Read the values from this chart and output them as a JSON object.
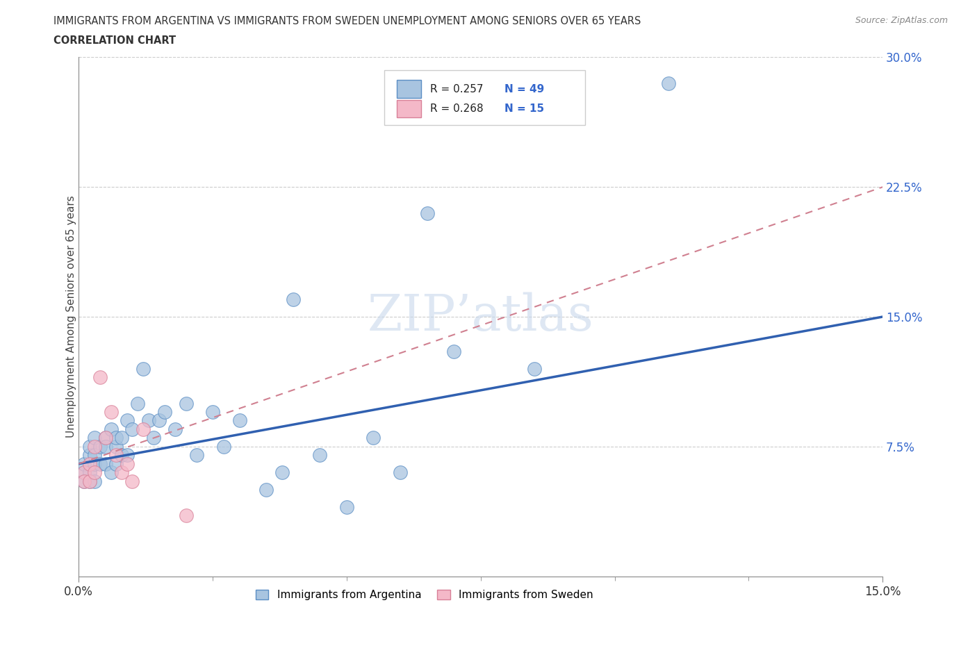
{
  "title_line1": "IMMIGRANTS FROM ARGENTINA VS IMMIGRANTS FROM SWEDEN UNEMPLOYMENT AMONG SENIORS OVER 65 YEARS",
  "title_line2": "CORRELATION CHART",
  "source_text": "Source: ZipAtlas.com",
  "ylabel": "Unemployment Among Seniors over 65 years",
  "xlim": [
    0.0,
    0.15
  ],
  "ylim": [
    0.0,
    0.3
  ],
  "xtick_positions": [
    0.0,
    0.15
  ],
  "xtick_labels": [
    "0.0%",
    "15.0%"
  ],
  "ytick_positions": [
    0.075,
    0.15,
    0.225,
    0.3
  ],
  "ytick_labels": [
    "7.5%",
    "15.0%",
    "22.5%",
    "30.0%"
  ],
  "legend_r1": "R = 0.257",
  "legend_n1": "N = 49",
  "legend_r2": "R = 0.268",
  "legend_n2": "N = 15",
  "color_argentina_fill": "#a8c4e0",
  "color_argentina_edge": "#5b8ec4",
  "color_sweden_fill": "#f4b8c8",
  "color_sweden_edge": "#d88098",
  "color_line_argentina": "#3060b0",
  "color_line_sweden": "#d08090",
  "watermark_color": "#c8d8ec",
  "arg_x": [
    0.001,
    0.001,
    0.001,
    0.002,
    0.002,
    0.002,
    0.002,
    0.003,
    0.003,
    0.003,
    0.003,
    0.004,
    0.004,
    0.005,
    0.005,
    0.005,
    0.006,
    0.006,
    0.007,
    0.007,
    0.007,
    0.008,
    0.008,
    0.009,
    0.009,
    0.01,
    0.011,
    0.012,
    0.013,
    0.014,
    0.015,
    0.016,
    0.018,
    0.02,
    0.022,
    0.025,
    0.027,
    0.03,
    0.035,
    0.038,
    0.04,
    0.045,
    0.05,
    0.055,
    0.06,
    0.065,
    0.07,
    0.085,
    0.11
  ],
  "arg_y": [
    0.06,
    0.065,
    0.055,
    0.07,
    0.06,
    0.075,
    0.055,
    0.065,
    0.08,
    0.07,
    0.055,
    0.075,
    0.065,
    0.08,
    0.065,
    0.075,
    0.085,
    0.06,
    0.075,
    0.065,
    0.08,
    0.07,
    0.08,
    0.09,
    0.07,
    0.085,
    0.1,
    0.12,
    0.09,
    0.08,
    0.09,
    0.095,
    0.085,
    0.1,
    0.07,
    0.095,
    0.075,
    0.09,
    0.05,
    0.06,
    0.16,
    0.07,
    0.04,
    0.08,
    0.06,
    0.21,
    0.13,
    0.12,
    0.285
  ],
  "swe_x": [
    0.001,
    0.001,
    0.002,
    0.002,
    0.003,
    0.003,
    0.004,
    0.005,
    0.006,
    0.007,
    0.008,
    0.009,
    0.01,
    0.012,
    0.02
  ],
  "swe_y": [
    0.06,
    0.055,
    0.065,
    0.055,
    0.075,
    0.06,
    0.115,
    0.08,
    0.095,
    0.07,
    0.06,
    0.065,
    0.055,
    0.085,
    0.035
  ],
  "arg_trendline_x": [
    0.0,
    0.15
  ],
  "arg_trendline_y": [
    0.065,
    0.15
  ],
  "swe_trendline_x": [
    0.0,
    0.15
  ],
  "swe_trendline_y": [
    0.065,
    0.225
  ]
}
